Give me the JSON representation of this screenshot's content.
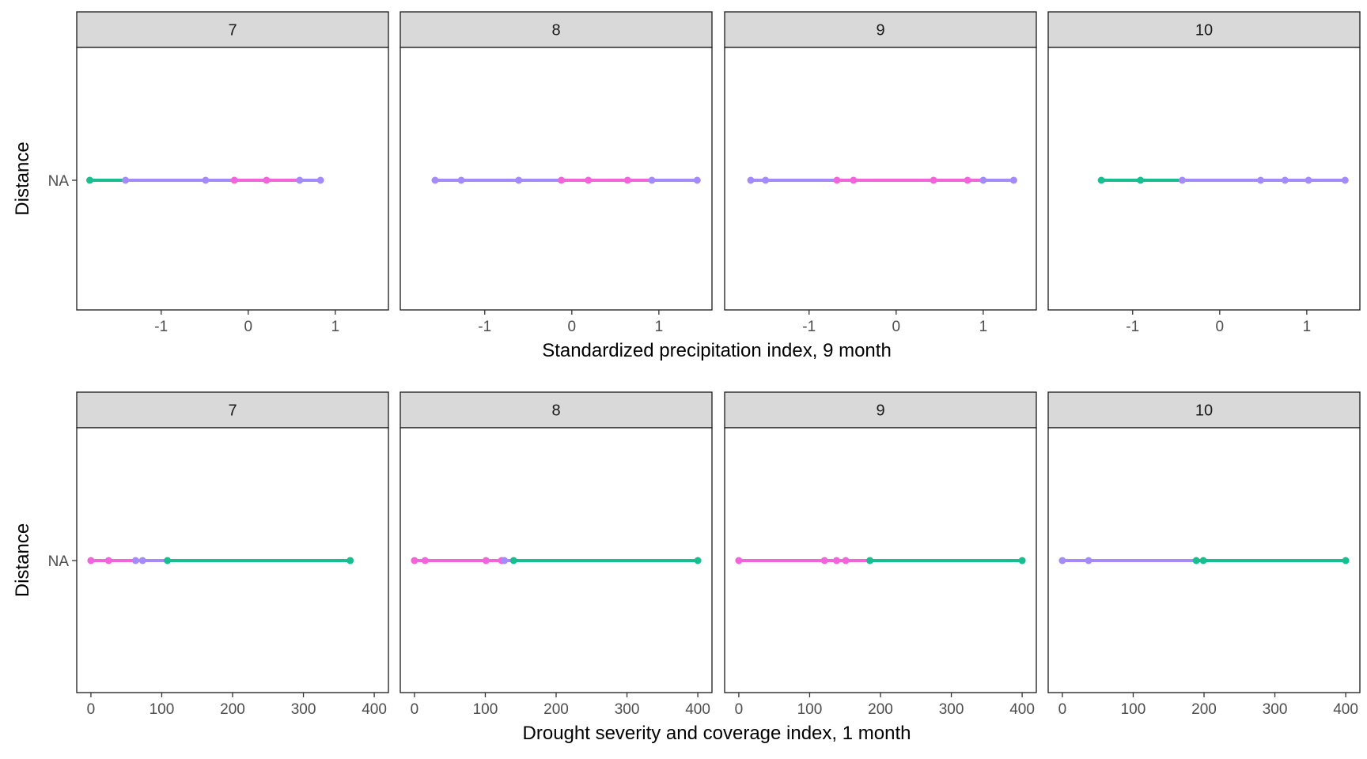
{
  "chart_data": [
    {
      "type": "line",
      "xlabel": "Standardized precipitation index, 9 month",
      "ylabel": "Distance",
      "y_category": "NA",
      "xlim": [
        -1.97,
        1.61
      ],
      "x_ticks": [
        -1,
        0,
        1
      ],
      "x_tick_labels": [
        "-1",
        "0",
        "1"
      ],
      "grid": false,
      "facets": [
        {
          "label": "7",
          "points": [
            -1.82,
            -1.41,
            -0.49,
            -0.16,
            0.21,
            0.59,
            0.83
          ],
          "segments": [
            {
              "from": -1.82,
              "to": -1.41,
              "color": "#17BE8F"
            },
            {
              "from": -1.41,
              "to": -0.16,
              "color": "#A58AFA"
            },
            {
              "from": -0.16,
              "to": 0.59,
              "color": "#F264DA"
            },
            {
              "from": 0.59,
              "to": 0.83,
              "color": "#A58AFA"
            }
          ]
        },
        {
          "label": "8",
          "points": [
            -1.57,
            -1.27,
            -0.61,
            -0.12,
            0.19,
            0.64,
            0.92,
            1.44
          ],
          "segments": [
            {
              "from": -1.57,
              "to": -0.12,
              "color": "#A58AFA"
            },
            {
              "from": -0.12,
              "to": 0.92,
              "color": "#F264DA"
            },
            {
              "from": 0.92,
              "to": 1.44,
              "color": "#A58AFA"
            }
          ]
        },
        {
          "label": "9",
          "points": [
            -1.67,
            -1.5,
            -0.68,
            -0.49,
            0.43,
            0.82,
            1.0,
            1.35
          ],
          "segments": [
            {
              "from": -1.67,
              "to": -0.68,
              "color": "#A58AFA"
            },
            {
              "from": -0.68,
              "to": 1.0,
              "color": "#F264DA"
            },
            {
              "from": 1.0,
              "to": 1.35,
              "color": "#A58AFA"
            }
          ]
        },
        {
          "label": "10",
          "points": [
            -1.36,
            -0.91,
            -0.43,
            0.47,
            0.75,
            1.02,
            1.44
          ],
          "segments": [
            {
              "from": -1.36,
              "to": -0.43,
              "color": "#17BE8F"
            },
            {
              "from": -0.43,
              "to": 1.44,
              "color": "#A58AFA"
            }
          ]
        }
      ]
    },
    {
      "type": "line",
      "xlabel": "Drought severity and coverage index, 1 month",
      "ylabel": "Distance",
      "y_category": "NA",
      "xlim": [
        -20,
        420
      ],
      "x_ticks": [
        0,
        100,
        200,
        300,
        400
      ],
      "x_tick_labels": [
        "0",
        "100",
        "200",
        "300",
        "400"
      ],
      "grid": false,
      "facets": [
        {
          "label": "7",
          "points": [
            0,
            25,
            63,
            73,
            108,
            366
          ],
          "segments": [
            {
              "from": 0,
              "to": 63,
              "color": "#F264DA"
            },
            {
              "from": 63,
              "to": 108,
              "color": "#A58AFA"
            },
            {
              "from": 108,
              "to": 366,
              "color": "#17BE8F"
            }
          ]
        },
        {
          "label": "8",
          "points": [
            0,
            15,
            101,
            123,
            127,
            140,
            400
          ],
          "segments": [
            {
              "from": 0,
              "to": 127,
              "color": "#F264DA"
            },
            {
              "from": 127,
              "to": 140,
              "color": "#A58AFA"
            },
            {
              "from": 140,
              "to": 400,
              "color": "#17BE8F"
            }
          ]
        },
        {
          "label": "9",
          "points": [
            0,
            121,
            138,
            151,
            185,
            400
          ],
          "segments": [
            {
              "from": 0,
              "to": 185,
              "color": "#F264DA"
            },
            {
              "from": 185,
              "to": 400,
              "color": "#17BE8F"
            }
          ]
        },
        {
          "label": "10",
          "points": [
            0,
            37,
            189,
            199,
            400
          ],
          "segments": [
            {
              "from": 0,
              "to": 189,
              "color": "#A58AFA"
            },
            {
              "from": 189,
              "to": 400,
              "color": "#17BE8F"
            }
          ]
        }
      ]
    }
  ]
}
